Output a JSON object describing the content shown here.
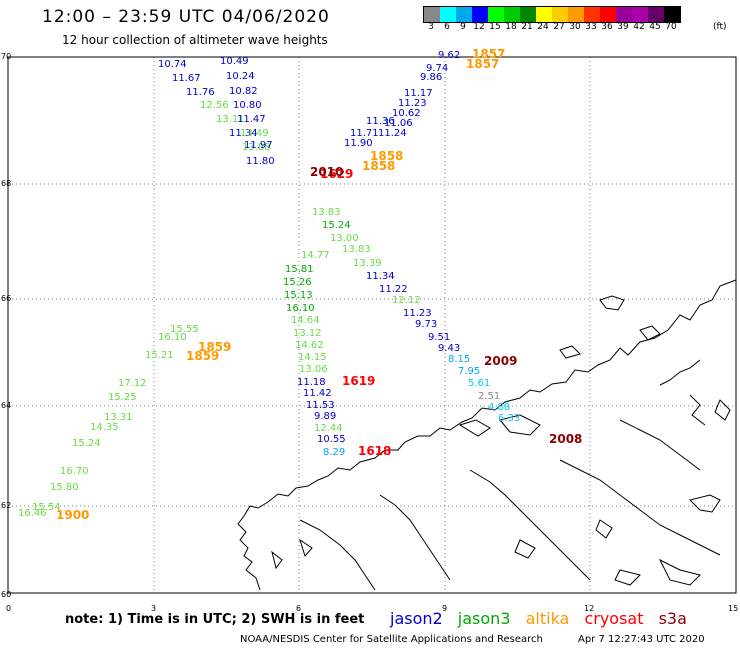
{
  "header": {
    "title": "12:00 – 23:59 UTC 04/06/2020",
    "subtitle": "12 hour collection of altimeter wave heights"
  },
  "colorbar": {
    "labels": [
      "3",
      "6",
      "9",
      "12",
      "15",
      "18",
      "21",
      "24",
      "27",
      "30",
      "33",
      "36",
      "39",
      "42",
      "45",
      "70"
    ],
    "colors": [
      "#888888",
      "#00ffff",
      "#00aaee",
      "#0000ff",
      "#00ff00",
      "#00cc00",
      "#008800",
      "#ffff00",
      "#ffcc00",
      "#ff9900",
      "#ff3300",
      "#ff0000",
      "#990099",
      "#aa00aa",
      "#660066",
      "#000000"
    ],
    "unit": "(ft)"
  },
  "axes": {
    "lat_ticks": [
      "70",
      "68",
      "66",
      "64",
      "62",
      "60"
    ],
    "lon_ticks": [
      "0",
      "3",
      "6",
      "9",
      "12",
      "15"
    ]
  },
  "tracks": [
    {
      "satellite": "jason2",
      "points": [
        {
          "v": "10.74",
          "c": "#0000cc"
        },
        {
          "v": "10.49",
          "c": "#0000cc"
        },
        {
          "v": "11.67",
          "c": "#0000cc"
        },
        {
          "v": "10.24",
          "c": "#0000cc"
        },
        {
          "v": "11.76",
          "c": "#0000cc"
        },
        {
          "v": "10.82",
          "c": "#0000cc"
        },
        {
          "v": "12.56",
          "c": "#66dd44"
        },
        {
          "v": "10.80",
          "c": "#0000cc"
        },
        {
          "v": "13.11",
          "c": "#66dd44"
        },
        {
          "v": "11.47",
          "c": "#0000cc"
        },
        {
          "v": "11.34",
          "c": "#0000cc"
        },
        {
          "v": "13.49",
          "c": "#66dd44"
        },
        {
          "v": "13.88",
          "c": "#66dd44"
        },
        {
          "v": "11.97",
          "c": "#0000cc"
        },
        {
          "v": "11.80",
          "c": "#0000cc"
        }
      ]
    },
    {
      "satellite": "jason3",
      "points": [
        {
          "v": "13.83",
          "c": "#66dd44"
        },
        {
          "v": "15.24",
          "c": "#00aa00"
        },
        {
          "v": "13.00",
          "c": "#66dd44"
        },
        {
          "v": "13.83",
          "c": "#66dd44"
        },
        {
          "v": "13.39",
          "c": "#66dd44"
        },
        {
          "v": "11.34",
          "c": "#0000cc"
        },
        {
          "v": "11.22",
          "c": "#0000cc"
        },
        {
          "v": "12.12",
          "c": "#66dd44"
        },
        {
          "v": "11.23",
          "c": "#0000cc"
        },
        {
          "v": "9.73",
          "c": "#0000cc"
        },
        {
          "v": "9.51",
          "c": "#0000cc"
        },
        {
          "v": "9.43",
          "c": "#0000cc"
        },
        {
          "v": "8.15",
          "c": "#00aaee"
        },
        {
          "v": "7.95",
          "c": "#00aaee"
        },
        {
          "v": "5.61",
          "c": "#00ccee"
        },
        {
          "v": "2.51",
          "c": "#888888"
        },
        {
          "v": "4.88",
          "c": "#00ccee"
        },
        {
          "v": "6.33",
          "c": "#00ccee"
        }
      ]
    },
    {
      "satellite": "s3a",
      "points": [
        {
          "v": "14.77",
          "c": "#66dd44"
        },
        {
          "v": "15.81",
          "c": "#00aa00"
        },
        {
          "v": "15.26",
          "c": "#00aa00"
        },
        {
          "v": "15.13",
          "c": "#00aa00"
        },
        {
          "v": "16.10",
          "c": "#00aa00"
        },
        {
          "v": "14.64",
          "c": "#66dd44"
        },
        {
          "v": "13.12",
          "c": "#66dd44"
        },
        {
          "v": "14.62",
          "c": "#66dd44"
        },
        {
          "v": "14.15",
          "c": "#66dd44"
        },
        {
          "v": "13.06",
          "c": "#66dd44"
        },
        {
          "v": "11.18",
          "c": "#0000cc"
        },
        {
          "v": "11.42",
          "c": "#0000cc"
        },
        {
          "v": "11.53",
          "c": "#0000cc"
        },
        {
          "v": "9.89",
          "c": "#0000cc"
        },
        {
          "v": "12.44",
          "c": "#66dd44"
        },
        {
          "v": "10.55",
          "c": "#0000cc"
        },
        {
          "v": "8.29",
          "c": "#00aaee"
        }
      ]
    },
    {
      "satellite": "ne_track",
      "points": [
        {
          "v": "9.62",
          "c": "#0000cc"
        },
        {
          "v": "9.74",
          "c": "#0000cc"
        },
        {
          "v": "9.86",
          "c": "#0000cc"
        },
        {
          "v": "11.17",
          "c": "#0000cc"
        },
        {
          "v": "11.23",
          "c": "#0000cc"
        },
        {
          "v": "10.62",
          "c": "#0000cc"
        },
        {
          "v": "11.06",
          "c": "#0000cc"
        },
        {
          "v": "11.24",
          "c": "#0000cc"
        },
        {
          "v": "11.36",
          "c": "#0000cc"
        },
        {
          "v": "11.71",
          "c": "#0000cc"
        },
        {
          "v": "11.90",
          "c": "#0000cc"
        }
      ]
    },
    {
      "satellite": "sw_track",
      "points": [
        {
          "v": "15.55",
          "c": "#66dd44"
        },
        {
          "v": "16.10",
          "c": "#66dd44"
        },
        {
          "v": "15.21",
          "c": "#66dd44"
        },
        {
          "v": "17.12",
          "c": "#66dd44"
        },
        {
          "v": "15.25",
          "c": "#66dd44"
        },
        {
          "v": "15.24",
          "c": "#66dd44"
        },
        {
          "v": "16.46",
          "c": "#66dd44"
        },
        {
          "v": "15.54",
          "c": "#66dd44"
        },
        {
          "v": "15.80",
          "c": "#66dd44"
        },
        {
          "v": "16.70",
          "c": "#66dd44"
        },
        {
          "v": "14.35",
          "c": "#66dd44"
        },
        {
          "v": "13.31",
          "c": "#66dd44"
        }
      ]
    }
  ],
  "time_labels": [
    {
      "v": "1857",
      "c": "#ff9900"
    },
    {
      "v": "1857",
      "c": "#ff9900"
    },
    {
      "v": "1858",
      "c": "#ff9900"
    },
    {
      "v": "1858",
      "c": "#ff9900"
    },
    {
      "v": "1629",
      "c": "#ff0000"
    },
    {
      "v": "2010",
      "c": "#880000"
    },
    {
      "v": "2009",
      "c": "#880000"
    },
    {
      "v": "1619",
      "c": "#ff0000"
    },
    {
      "v": "1618",
      "c": "#ff0000"
    },
    {
      "v": "2008",
      "c": "#880000"
    },
    {
      "v": "1859",
      "c": "#ff9900"
    },
    {
      "v": "1859",
      "c": "#ff9900"
    },
    {
      "v": "1900",
      "c": "#ff9900"
    }
  ],
  "footer": {
    "note": "note: 1) Time is in UTC; 2) SWH is in feet",
    "legend": [
      {
        "label": "jason2",
        "color": "#0000cc"
      },
      {
        "label": "jason3",
        "color": "#00aa00"
      },
      {
        "label": "altika",
        "color": "#ff9900"
      },
      {
        "label": "cryosat",
        "color": "#ff0000"
      },
      {
        "label": "s3a",
        "color": "#880000"
      }
    ],
    "credit": "NOAA/NESDIS Center for Satellite Applications and Research",
    "timestamp": "Apr  7 12:27:43 UTC 2020"
  }
}
